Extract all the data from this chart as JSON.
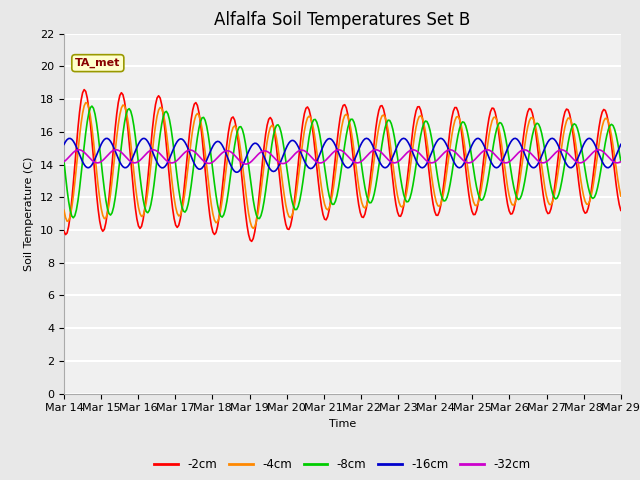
{
  "title": "Alfalfa Soil Temperatures Set B",
  "xlabel": "Time",
  "ylabel": "Soil Temperature (C)",
  "ylim": [
    0,
    22
  ],
  "yticks": [
    0,
    2,
    4,
    6,
    8,
    10,
    12,
    14,
    16,
    18,
    20,
    22
  ],
  "x_labels": [
    "Mar 14",
    "Mar 15",
    "Mar 16",
    "Mar 17",
    "Mar 18",
    "Mar 19",
    "Mar 20",
    "Mar 21",
    "Mar 22",
    "Mar 23",
    "Mar 24",
    "Mar 25",
    "Mar 26",
    "Mar 27",
    "Mar 28",
    "Mar 29"
  ],
  "annotation": "TA_met",
  "legend_labels": [
    "-2cm",
    "-4cm",
    "-8cm",
    "-16cm",
    "-32cm"
  ],
  "line_colors": [
    "#ff0000",
    "#ff8800",
    "#00cc00",
    "#0000cc",
    "#cc00cc"
  ],
  "line_widths": [
    1.2,
    1.2,
    1.2,
    1.2,
    1.2
  ],
  "bg_color": "#e8e8e8",
  "plot_bg_color": "#f0f0f0",
  "grid_color": "#ffffff",
  "title_fontsize": 12,
  "label_fontsize": 8,
  "tick_fontsize": 8
}
